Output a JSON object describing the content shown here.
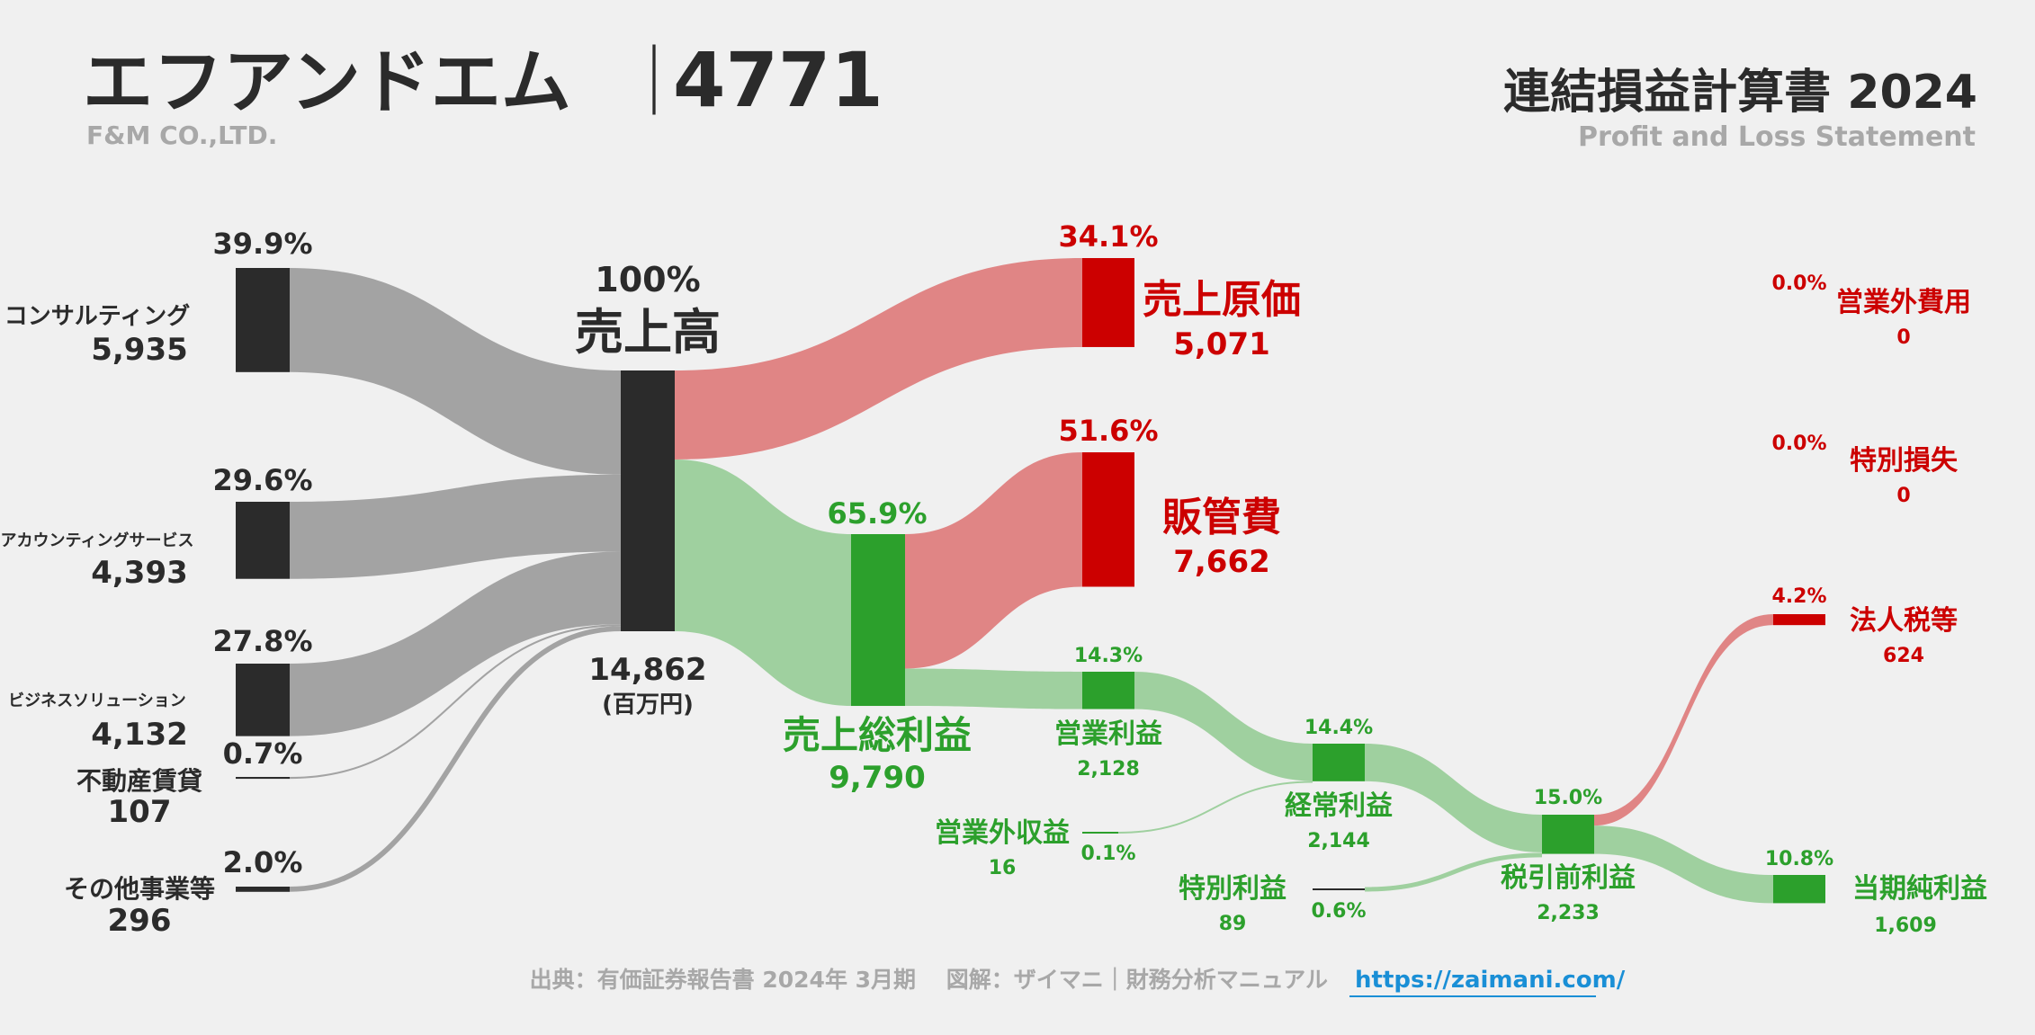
{
  "header": {
    "company_name": "エフアンドエム",
    "separator": "｜",
    "ticker": "4771",
    "company_en": "F&M CO.,LTD.",
    "statement_title": "連結損益計算書 2024",
    "statement_en": "Profit and Loss Statement"
  },
  "footer": {
    "source": "出典：有価証券報告書 2024年 3月期　 図解：ザイマニ｜財務分析マニュアル",
    "url": "https://zaimani.com/"
  },
  "colors": {
    "background": "#f0f0f0",
    "dark": "#2b2b2b",
    "gray_flow": "#a3a3a3",
    "red": "#cc0000",
    "red_flow": "#e08585",
    "green": "#2ca02c",
    "green_flow": "#9fd09f",
    "muted": "#a8a8a8",
    "link": "#1a8fd6"
  },
  "chart_data": {
    "type": "sankey",
    "unit": "百万円",
    "revenue": {
      "label": "売上高",
      "pct": "100%",
      "value": "14,862",
      "unit_label": "(百万円)"
    },
    "segments": [
      {
        "label": "コンサルティング",
        "value": "5,935",
        "pct": "39.9%"
      },
      {
        "label": "アカウンティングサービス",
        "value": "4,393",
        "pct": "29.6%"
      },
      {
        "label": "ビジネスソリューション",
        "value": "4,132",
        "pct": "27.8%"
      },
      {
        "label": "不動産賃貸",
        "value": "107",
        "pct": "0.7%"
      },
      {
        "label": "その他事業等",
        "value": "296",
        "pct": "2.0%"
      }
    ],
    "cost_of_sales": {
      "label": "売上原価",
      "value": "5,071",
      "pct": "34.1%"
    },
    "gross_profit": {
      "label": "売上総利益",
      "value": "9,790",
      "pct": "65.9%"
    },
    "sga": {
      "label": "販管費",
      "value": "7,662",
      "pct": "51.6%"
    },
    "operating_income": {
      "label": "営業利益",
      "value": "2,128",
      "pct": "14.3%"
    },
    "non_operating_income": {
      "label": "営業外収益",
      "value": "16",
      "pct": "0.1%"
    },
    "non_operating_expenses": {
      "label": "営業外費用",
      "value": "0",
      "pct": "0.0%"
    },
    "ordinary_income": {
      "label": "経常利益",
      "value": "2,144",
      "pct": "14.4%"
    },
    "extraordinary_income": {
      "label": "特別利益",
      "value": "89",
      "pct": "0.6%"
    },
    "extraordinary_loss": {
      "label": "特別損失",
      "value": "0",
      "pct": "0.0%"
    },
    "pretax_income": {
      "label": "税引前利益",
      "value": "2,233",
      "pct": "15.0%"
    },
    "income_taxes": {
      "label": "法人税等",
      "value": "624",
      "pct": "4.2%"
    },
    "net_income": {
      "label": "当期純利益",
      "value": "1,609",
      "pct": "10.8%"
    }
  }
}
